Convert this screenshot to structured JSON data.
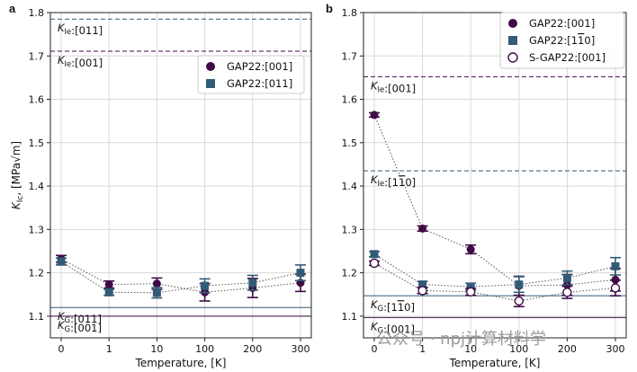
{
  "chart_data": [
    {
      "type": "scatter",
      "panel": "a",
      "categories": [
        "0",
        "1",
        "10",
        "100",
        "200",
        "300"
      ],
      "xlabel": "Temperature, [K]",
      "ylabel": "K_Ic, [MPa√m]",
      "ylim": [
        1.05,
        1.8
      ],
      "yticks": [
        "1.1",
        "1.2",
        "1.3",
        "1.4",
        "1.5",
        "1.6",
        "1.7",
        "1.8"
      ],
      "grid": true,
      "legend_position": "upper-right",
      "series": [
        {
          "name": "GAP22:[001]",
          "marker": "filled-circle",
          "color": "#3f0b45",
          "values": [
            1.232,
            1.173,
            1.175,
            1.155,
            1.165,
            1.177
          ],
          "errors": [
            0.008,
            0.008,
            0.013,
            0.02,
            0.022,
            0.02
          ]
        },
        {
          "name": "GAP22:[011]",
          "marker": "filled-square",
          "color": "#315b77",
          "values": [
            1.226,
            1.155,
            1.154,
            1.17,
            1.177,
            1.2
          ],
          "errors": [
            0.008,
            0.007,
            0.012,
            0.016,
            0.017,
            0.018
          ]
        }
      ],
      "reference_lines": [
        {
          "label_main": "K",
          "label_sub": "Ie",
          "label_suffix": ":[011]",
          "value": 1.785,
          "style": "dashed",
          "color": "#315b77"
        },
        {
          "label_main": "K",
          "label_sub": "Ie",
          "label_suffix": ":[001]",
          "value": 1.711,
          "style": "dashed",
          "color": "#3f0b45"
        },
        {
          "label_main": "K",
          "label_sub": "G",
          "label_suffix": ":[011]",
          "value": 1.12,
          "style": "solid",
          "color": "#315b77"
        },
        {
          "label_main": "K",
          "label_sub": "G",
          "label_suffix": ":[001]",
          "value": 1.1,
          "style": "solid",
          "color": "#3f0b45"
        }
      ]
    },
    {
      "type": "scatter",
      "panel": "b",
      "categories": [
        "0",
        "1",
        "10",
        "100",
        "200",
        "300"
      ],
      "xlabel": "Temperature, [K]",
      "ylabel": "",
      "ylim": [
        1.05,
        1.8
      ],
      "yticks": [
        "1.1",
        "1.2",
        "1.3",
        "1.4",
        "1.5",
        "1.6",
        "1.7",
        "1.8"
      ],
      "grid": true,
      "legend_position": "upper-right",
      "series": [
        {
          "name": "GAP22:[001]",
          "marker": "filled-circle",
          "color": "#3f0b45",
          "values": [
            1.564,
            1.302,
            1.254,
            1.17,
            1.172,
            1.184
          ],
          "errors": [
            0.005,
            0.006,
            0.01,
            0.022,
            0.024,
            0.026
          ]
        },
        {
          "name": "GAP22:[1-10]",
          "marker": "filled-square",
          "color": "#315b77",
          "values": [
            1.243,
            1.173,
            1.168,
            1.173,
            1.188,
            1.215
          ],
          "errors": [
            0.006,
            0.007,
            0.008,
            0.018,
            0.016,
            0.02
          ]
        },
        {
          "name": "S-GAP22:[001]",
          "marker": "open-circle",
          "color": "#3f0b45",
          "values": [
            1.222,
            1.159,
            1.156,
            1.135,
            1.155,
            1.165
          ],
          "errors": [
            0.005,
            0.007,
            0.008,
            0.013,
            0.014,
            0.018
          ]
        }
      ],
      "reference_lines": [
        {
          "label_main": "K",
          "label_sub": "Ie",
          "label_suffix": ":[001]",
          "value": 1.652,
          "style": "dashed",
          "color": "#3f0b45"
        },
        {
          "label_main": "K",
          "label_sub": "Ie",
          "label_suffix": ":[1-10]",
          "value": 1.435,
          "style": "dashed",
          "color": "#315b77"
        },
        {
          "label_main": "K",
          "label_sub": "G",
          "label_suffix": ":[1-10]",
          "value": 1.147,
          "style": "solid",
          "color": "#315b77"
        },
        {
          "label_main": "K",
          "label_sub": "G",
          "label_suffix": ":[001]",
          "value": 1.097,
          "style": "solid",
          "color": "#3f0b45"
        }
      ]
    }
  ],
  "watermark": "公众号 · npj计算材料学"
}
